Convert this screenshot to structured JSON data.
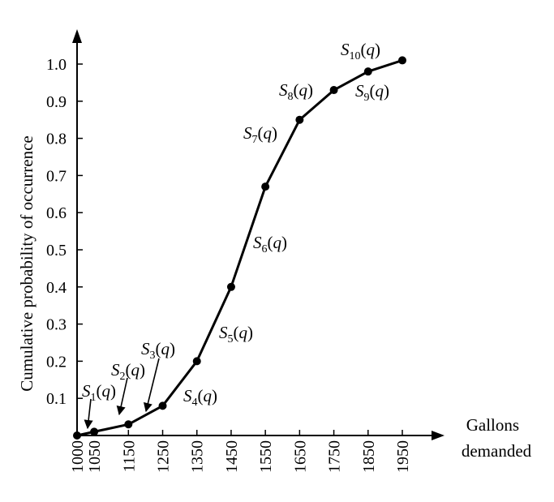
{
  "chart_data": {
    "type": "line",
    "ylabel": "Cumulative probability of occurrence",
    "xlabel_lines": [
      "Gallons",
      "demanded"
    ],
    "x_ticks": [
      "1000",
      "1050",
      "1150",
      "1250",
      "1350",
      "1450",
      "1550",
      "1650",
      "1750",
      "1850",
      "1950"
    ],
    "y_ticks": [
      "0.1",
      "0.2",
      "0.3",
      "0.4",
      "0.5",
      "0.6",
      "0.7",
      "0.8",
      "0.9",
      "1.0"
    ],
    "xlim": [
      1000,
      1950
    ],
    "ylim": [
      0,
      1.05
    ],
    "grid": false,
    "series": [
      {
        "x": [
          1000,
          1050,
          1150,
          1250,
          1350,
          1450,
          1550,
          1650,
          1750,
          1850,
          1950
        ],
        "y": [
          0.0,
          0.01,
          0.03,
          0.08,
          0.2,
          0.4,
          0.67,
          0.85,
          0.93,
          0.98,
          1.01
        ]
      }
    ],
    "annotations": [
      {
        "base": "S",
        "sub": "1",
        "arg": "q",
        "arrow": true
      },
      {
        "base": "S",
        "sub": "2",
        "arg": "q",
        "arrow": true
      },
      {
        "base": "S",
        "sub": "3",
        "arg": "q",
        "arrow": true
      },
      {
        "base": "S",
        "sub": "4",
        "arg": "q",
        "arrow": false
      },
      {
        "base": "S",
        "sub": "5",
        "arg": "q",
        "arrow": false
      },
      {
        "base": "S",
        "sub": "6",
        "arg": "q",
        "arrow": false
      },
      {
        "base": "S",
        "sub": "7",
        "arg": "q",
        "arrow": false
      },
      {
        "base": "S",
        "sub": "8",
        "arg": "q",
        "arrow": false
      },
      {
        "base": "S",
        "sub": "9",
        "arg": "q",
        "arrow": false
      },
      {
        "base": "S",
        "sub": "10",
        "arg": "q",
        "arrow": false
      }
    ],
    "colors": {
      "line": "#000000",
      "axis": "#000000",
      "background": "#ffffff"
    }
  }
}
